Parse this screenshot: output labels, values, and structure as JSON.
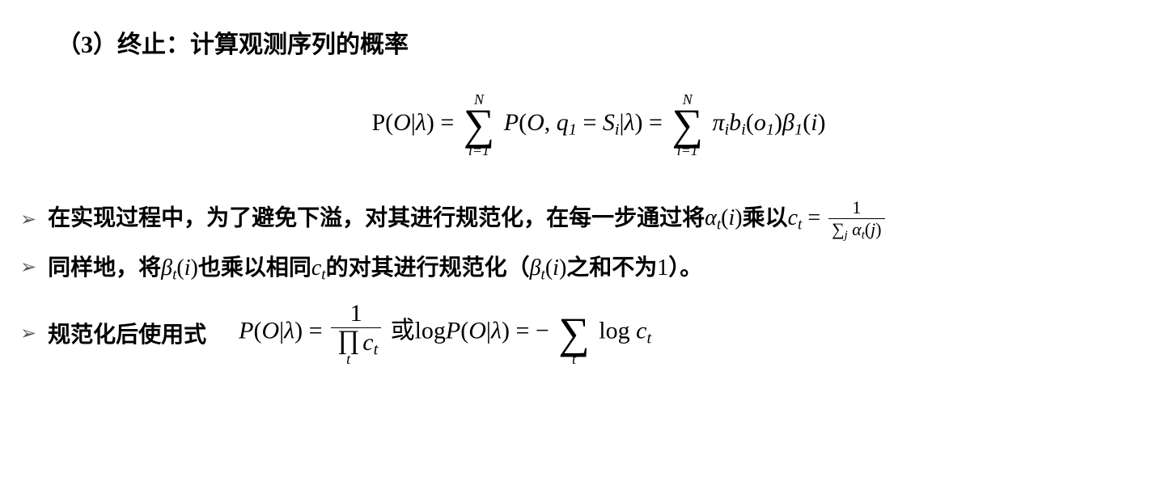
{
  "heading": "（3）终止：计算观测序列的概率",
  "formula1": {
    "lhs_P": "P",
    "lhs_open": "(",
    "lhs_O": "O",
    "lhs_bar": "|",
    "lhs_lambda": "λ",
    "lhs_close": ")",
    "eq": " = ",
    "sum1_top": "N",
    "sum1_sigma": "∑",
    "sum1_bot": "i=1",
    "mid_P": "P",
    "mid_open": "(",
    "mid_O": "O",
    "mid_comma": ", ",
    "mid_q": "q",
    "mid_q_sub": "1",
    "mid_eq": " = ",
    "mid_S": "S",
    "mid_S_sub": "i",
    "mid_bar": "|",
    "mid_lambda": "λ",
    "mid_close": ")",
    "eq2": " = ",
    "sum2_top": "N",
    "sum2_sigma": "∑",
    "sum2_bot": "i=1",
    "pi": "π",
    "pi_sub": "i",
    "b": "b",
    "b_sub": "i",
    "b_open": "(",
    "o": "o",
    "o_sub": "1",
    "b_close": ")",
    "beta": "β",
    "beta_sub": "1",
    "beta_open": "(",
    "beta_i": "i",
    "beta_close": ")"
  },
  "bullet_marker": "➢",
  "line1": {
    "t1": "在实现过程中，为了避免下溢，对其进行规范化，在每一步通过将",
    "alpha": "α",
    "alpha_sub": "t",
    "open": "(",
    "i": "i",
    "close": ")",
    "t2": "乘以",
    "c": "c",
    "c_sub": "t",
    "eq": " = ",
    "frac_num": "1",
    "frac_den_sigma": "∑",
    "frac_den_j": "j",
    "frac_den_sp": " ",
    "frac_den_alpha": "α",
    "frac_den_alpha_sub": "t",
    "frac_den_open": "(",
    "frac_den_jj": "j",
    "frac_den_close": ")"
  },
  "line2": {
    "t1": "同样地，将",
    "beta": "β",
    "beta_sub": "t",
    "open": "(",
    "i": "i",
    "close": ")",
    "t2": "也乘以相同",
    "c": "c",
    "c_sub": "t",
    "t3": "的对其进行规范化（",
    "beta2": "β",
    "beta2_sub": "t",
    "open2": "(",
    "i2": "i",
    "close2": ")",
    "t4": "之和不为",
    "one": "1",
    "t5": "）。"
  },
  "line3": {
    "label": "规范化后使用式",
    "P1": "P",
    "open1": "(",
    "O1": "O",
    "bar1": "|",
    "lam1": "λ",
    "close1": ")",
    "eq1": " = ",
    "frac_num": "1",
    "prod": "∏",
    "prod_sub": "t",
    "c1": "c",
    "c1_sub": "t",
    "or": " 或",
    "log1": "log",
    "P2": "P",
    "open2": "(",
    "O2": "O",
    "bar2": "|",
    "lam2": "λ",
    "close2": ")",
    "eq2": " = ",
    "minus": "− ",
    "sum_sigma": "∑",
    "sum_bot": "t",
    "log2": " log ",
    "c2": "c",
    "c2_sub": "t"
  },
  "colors": {
    "text": "#000000",
    "bullet": "#595959",
    "background": "#ffffff"
  }
}
